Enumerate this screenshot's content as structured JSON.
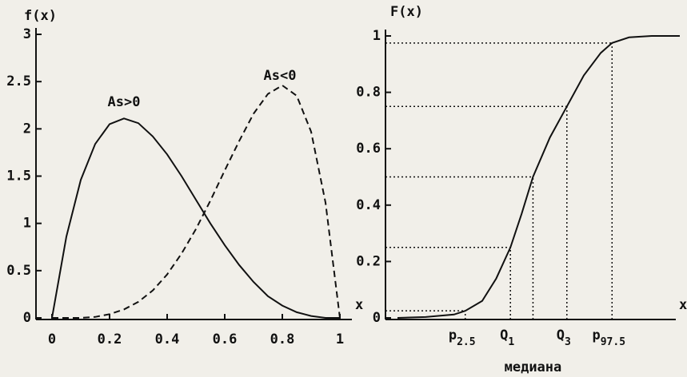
{
  "chart_data": [
    {
      "type": "line",
      "ylabel": "f(x)",
      "xlabel": "x",
      "annotations": [
        "As>0",
        "As<0"
      ],
      "x": [
        0,
        0.05,
        0.1,
        0.15,
        0.2,
        0.25,
        0.3,
        0.35,
        0.4,
        0.45,
        0.5,
        0.55,
        0.6,
        0.65,
        0.7,
        0.75,
        0.8,
        0.85,
        0.9,
        0.95,
        1
      ],
      "series": [
        {
          "style": "solid",
          "color": "#111111",
          "values": [
            0,
            0.86,
            1.46,
            1.84,
            2.05,
            2.11,
            2.06,
            1.92,
            1.73,
            1.5,
            1.25,
            1,
            0.77,
            0.56,
            0.38,
            0.23,
            0.13,
            0.06,
            0.02,
            0,
            0
          ]
        },
        {
          "style": "dashed",
          "color": "#111111",
          "values": [
            0,
            0,
            0,
            0.01,
            0.04,
            0.09,
            0.17,
            0.29,
            0.46,
            0.68,
            0.94,
            1.24,
            1.56,
            1.87,
            2.16,
            2.37,
            2.46,
            2.35,
            1.97,
            1.22,
            0
          ]
        }
      ],
      "xlim": [
        0,
        1
      ],
      "xticks": [
        0,
        0.2,
        0.4,
        0.6,
        0.8,
        1
      ],
      "ylim": [
        0,
        3
      ],
      "yticks": [
        0,
        0.5,
        1,
        1.5,
        2,
        2.5,
        3
      ]
    },
    {
      "type": "line",
      "ylabel": "F(x)",
      "xlabel": "x",
      "median_label": "медиана",
      "x": [
        0,
        0.1,
        0.2,
        0.24,
        0.3,
        0.35,
        0.4,
        0.44,
        0.48,
        0.54,
        0.6,
        0.66,
        0.72,
        0.76,
        0.82,
        0.9,
        1
      ],
      "series": [
        {
          "style": "solid",
          "color": "#111111",
          "values": [
            0,
            0.003,
            0.012,
            0.025,
            0.06,
            0.14,
            0.25,
            0.37,
            0.5,
            0.64,
            0.75,
            0.86,
            0.94,
            0.975,
            0.995,
            1,
            1
          ]
        }
      ],
      "markers": [
        {
          "label": "p",
          "sub": "2.5",
          "x": 0.24,
          "p": 0.025
        },
        {
          "label": "Q",
          "sub": "1",
          "x": 0.4,
          "p": 0.25
        },
        {
          "x": 0.48,
          "p": 0.5
        },
        {
          "label": "Q",
          "sub": "3",
          "x": 0.6,
          "p": 0.75
        },
        {
          "label": "p",
          "sub": "97.5",
          "x": 0.76,
          "p": 0.975
        }
      ],
      "xlim": [
        0,
        1
      ],
      "ylim": [
        0,
        1
      ],
      "yticks": [
        0,
        0.2,
        0.4,
        0.6,
        0.8,
        1
      ]
    }
  ]
}
